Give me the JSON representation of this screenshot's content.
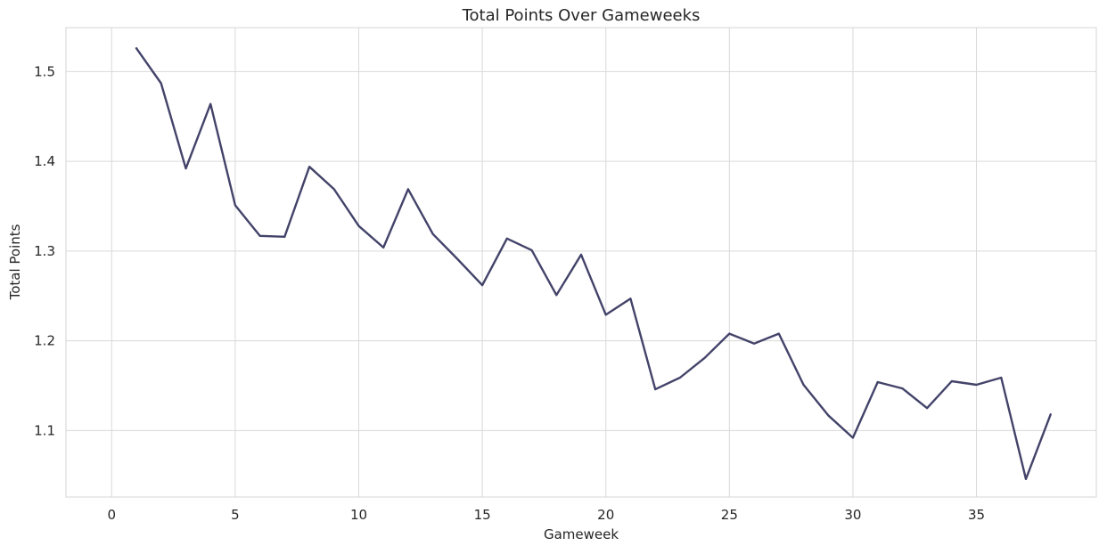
{
  "chart_data": {
    "type": "line",
    "title": "Total Points Over Gameweeks",
    "xlabel": "Gameweek",
    "ylabel": "Total Points",
    "xlim": [
      -1.85,
      39.85
    ],
    "ylim": [
      1.026,
      1.549
    ],
    "xticks": [
      0,
      5,
      10,
      15,
      20,
      25,
      30,
      35
    ],
    "yticks": [
      1.1,
      1.2,
      1.3,
      1.4,
      1.5
    ],
    "grid": true,
    "legend": "none",
    "colors": {
      "line": "#43436a",
      "grid": "#d9d9d9"
    },
    "series": [
      {
        "x": [
          1,
          2,
          3,
          4,
          5,
          6,
          7,
          8,
          9,
          10,
          11,
          12,
          13,
          14,
          15,
          16,
          17,
          18,
          19,
          20,
          21,
          22,
          23,
          24,
          25,
          26,
          27,
          28,
          29,
          30,
          31,
          32,
          33,
          34,
          35,
          36,
          37,
          38
        ],
        "y": [
          1.526,
          1.487,
          1.392,
          1.464,
          1.351,
          1.317,
          1.316,
          1.394,
          1.369,
          1.328,
          1.304,
          1.369,
          1.319,
          1.291,
          1.262,
          1.314,
          1.301,
          1.251,
          1.296,
          1.229,
          1.247,
          1.146,
          1.159,
          1.181,
          1.208,
          1.197,
          1.208,
          1.151,
          1.117,
          1.092,
          1.154,
          1.147,
          1.125,
          1.155,
          1.151,
          1.159,
          1.046,
          1.118
        ]
      }
    ]
  }
}
